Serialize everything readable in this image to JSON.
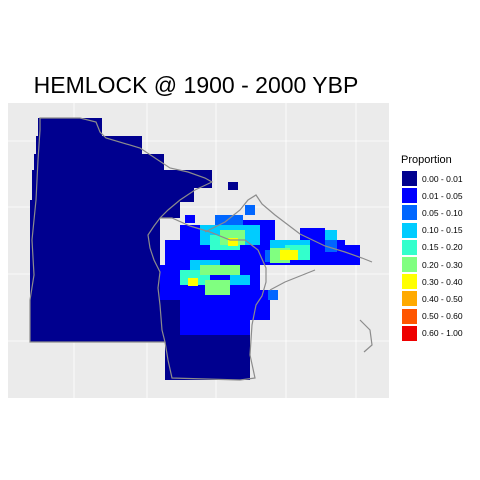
{
  "title": "HEMLOCK @ 1900 - 2000 YBP",
  "legend": {
    "title": "Proportion",
    "items": [
      {
        "label": "0.00 - 0.01",
        "color": "#00008f"
      },
      {
        "label": "0.01 - 0.05",
        "color": "#0000ff"
      },
      {
        "label": "0.05 - 0.10",
        "color": "#0066ff"
      },
      {
        "label": "0.10 - 0.15",
        "color": "#00ccff"
      },
      {
        "label": "0.15 - 0.20",
        "color": "#33ffcc"
      },
      {
        "label": "0.20 - 0.30",
        "color": "#80ff80"
      },
      {
        "label": "0.30 - 0.40",
        "color": "#ffff00"
      },
      {
        "label": "0.40 - 0.50",
        "color": "#ffaa00"
      },
      {
        "label": "0.50 - 0.60",
        "color": "#ff5500"
      },
      {
        "label": "0.60 - 1.00",
        "color": "#ee0000"
      }
    ]
  },
  "panel_color": "#ebebeb",
  "boundary_color": "#8c8c8c"
}
